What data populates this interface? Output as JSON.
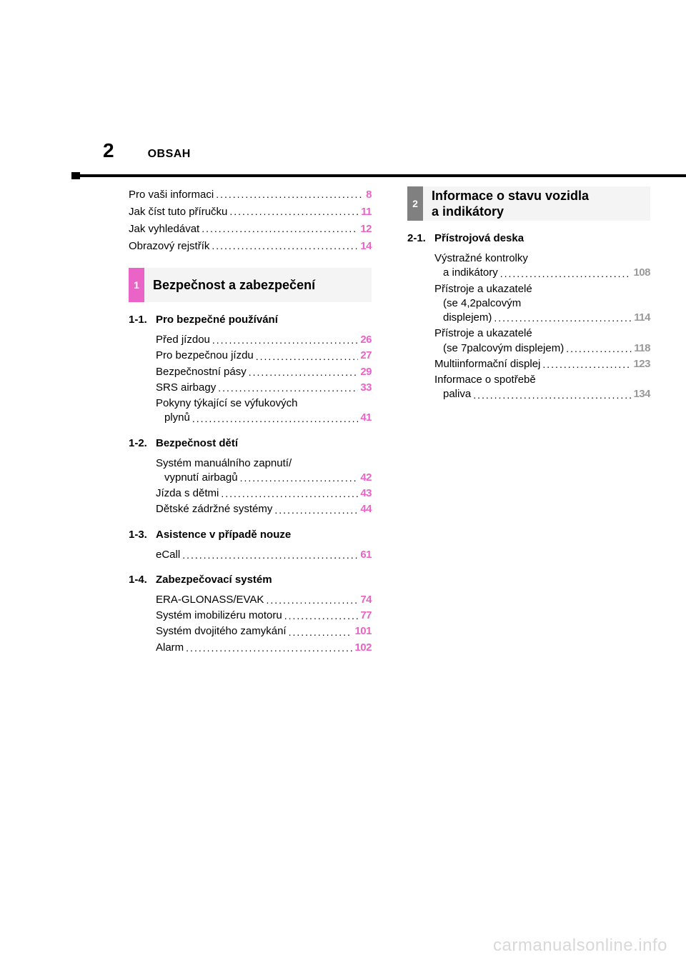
{
  "colors": {
    "accent_pink": "#e964c6",
    "accent_gray": "#808080",
    "text": "#000000",
    "background": "#ffffff",
    "watermark": "#d8d8d8",
    "tab_bg": "#f4f4f4"
  },
  "header": {
    "page_number": "2",
    "title": "OBSAH"
  },
  "intro": [
    {
      "label": "Pro vaši informaci",
      "page": "8",
      "color": "pink"
    },
    {
      "label": "Jak číst tuto příručku",
      "page": "11",
      "color": "pink"
    },
    {
      "label": "Jak vyhledávat",
      "page": "12",
      "color": "pink"
    },
    {
      "label": "Obrazový rejstřík",
      "page": "14",
      "color": "pink"
    }
  ],
  "chapter1": {
    "num": "1",
    "title": "Bezpečnost a zabezpečení",
    "sections": [
      {
        "num": "1-1.",
        "title": "Pro bezpečné používání",
        "entries": [
          {
            "type": "single",
            "label": "Před jízdou",
            "page": "26"
          },
          {
            "type": "single",
            "label": "Pro bezpečnou jízdu",
            "page": "27"
          },
          {
            "type": "single",
            "label": "Bezpečnostní pásy",
            "page": "29"
          },
          {
            "type": "single",
            "label": "SRS airbagy",
            "page": "33"
          },
          {
            "type": "multi",
            "lines": [
              "Pokyny týkající se výfukových"
            ],
            "last_label": "plynů",
            "page": "41"
          }
        ]
      },
      {
        "num": "1-2.",
        "title": "Bezpečnost dětí",
        "entries": [
          {
            "type": "multi",
            "lines": [
              "Systém manuálního zapnutí/"
            ],
            "last_label": "vypnutí airbagů",
            "page": "42"
          },
          {
            "type": "single",
            "label": "Jízda s dětmi",
            "page": "43"
          },
          {
            "type": "single",
            "label": "Dětské zádržné systémy",
            "page": "44"
          }
        ]
      },
      {
        "num": "1-3.",
        "title": "Asistence v případě nouze",
        "entries": [
          {
            "type": "single",
            "label": "eCall",
            "page": "61"
          }
        ]
      },
      {
        "num": "1-4.",
        "title": "Zabezpečovací systém",
        "entries": [
          {
            "type": "single",
            "label": "ERA-GLONASS/EVAK",
            "page": "74"
          },
          {
            "type": "single",
            "label": "Systém imobilizéru motoru",
            "page": "77"
          },
          {
            "type": "single",
            "label": "Systém dvojitého zamykání",
            "page": "101"
          },
          {
            "type": "single",
            "label": "Alarm",
            "page": "102"
          }
        ]
      }
    ]
  },
  "chapter2": {
    "num": "2",
    "title_line1": "Informace o stavu vozidla",
    "title_line2": "a indikátory",
    "sections": [
      {
        "num": "2-1.",
        "title": "Přístrojová deska",
        "entries": [
          {
            "type": "multi",
            "lines": [
              "Výstražné kontrolky"
            ],
            "last_label": "a indikátory",
            "page": "108"
          },
          {
            "type": "multi",
            "lines": [
              "Přístroje a ukazatelé",
              "(se 4,2palcovým"
            ],
            "last_label": "displejem)",
            "page": "114"
          },
          {
            "type": "multi",
            "lines": [
              "Přístroje a ukazatelé"
            ],
            "last_label": "(se 7palcovým displejem)",
            "page": "118"
          },
          {
            "type": "single",
            "label": "Multiinformační displej",
            "page": "123"
          },
          {
            "type": "multi",
            "lines": [
              "Informace o spotřebě"
            ],
            "last_label": "paliva",
            "page": "134"
          }
        ]
      }
    ]
  },
  "watermark": "carmanualsonline.info"
}
